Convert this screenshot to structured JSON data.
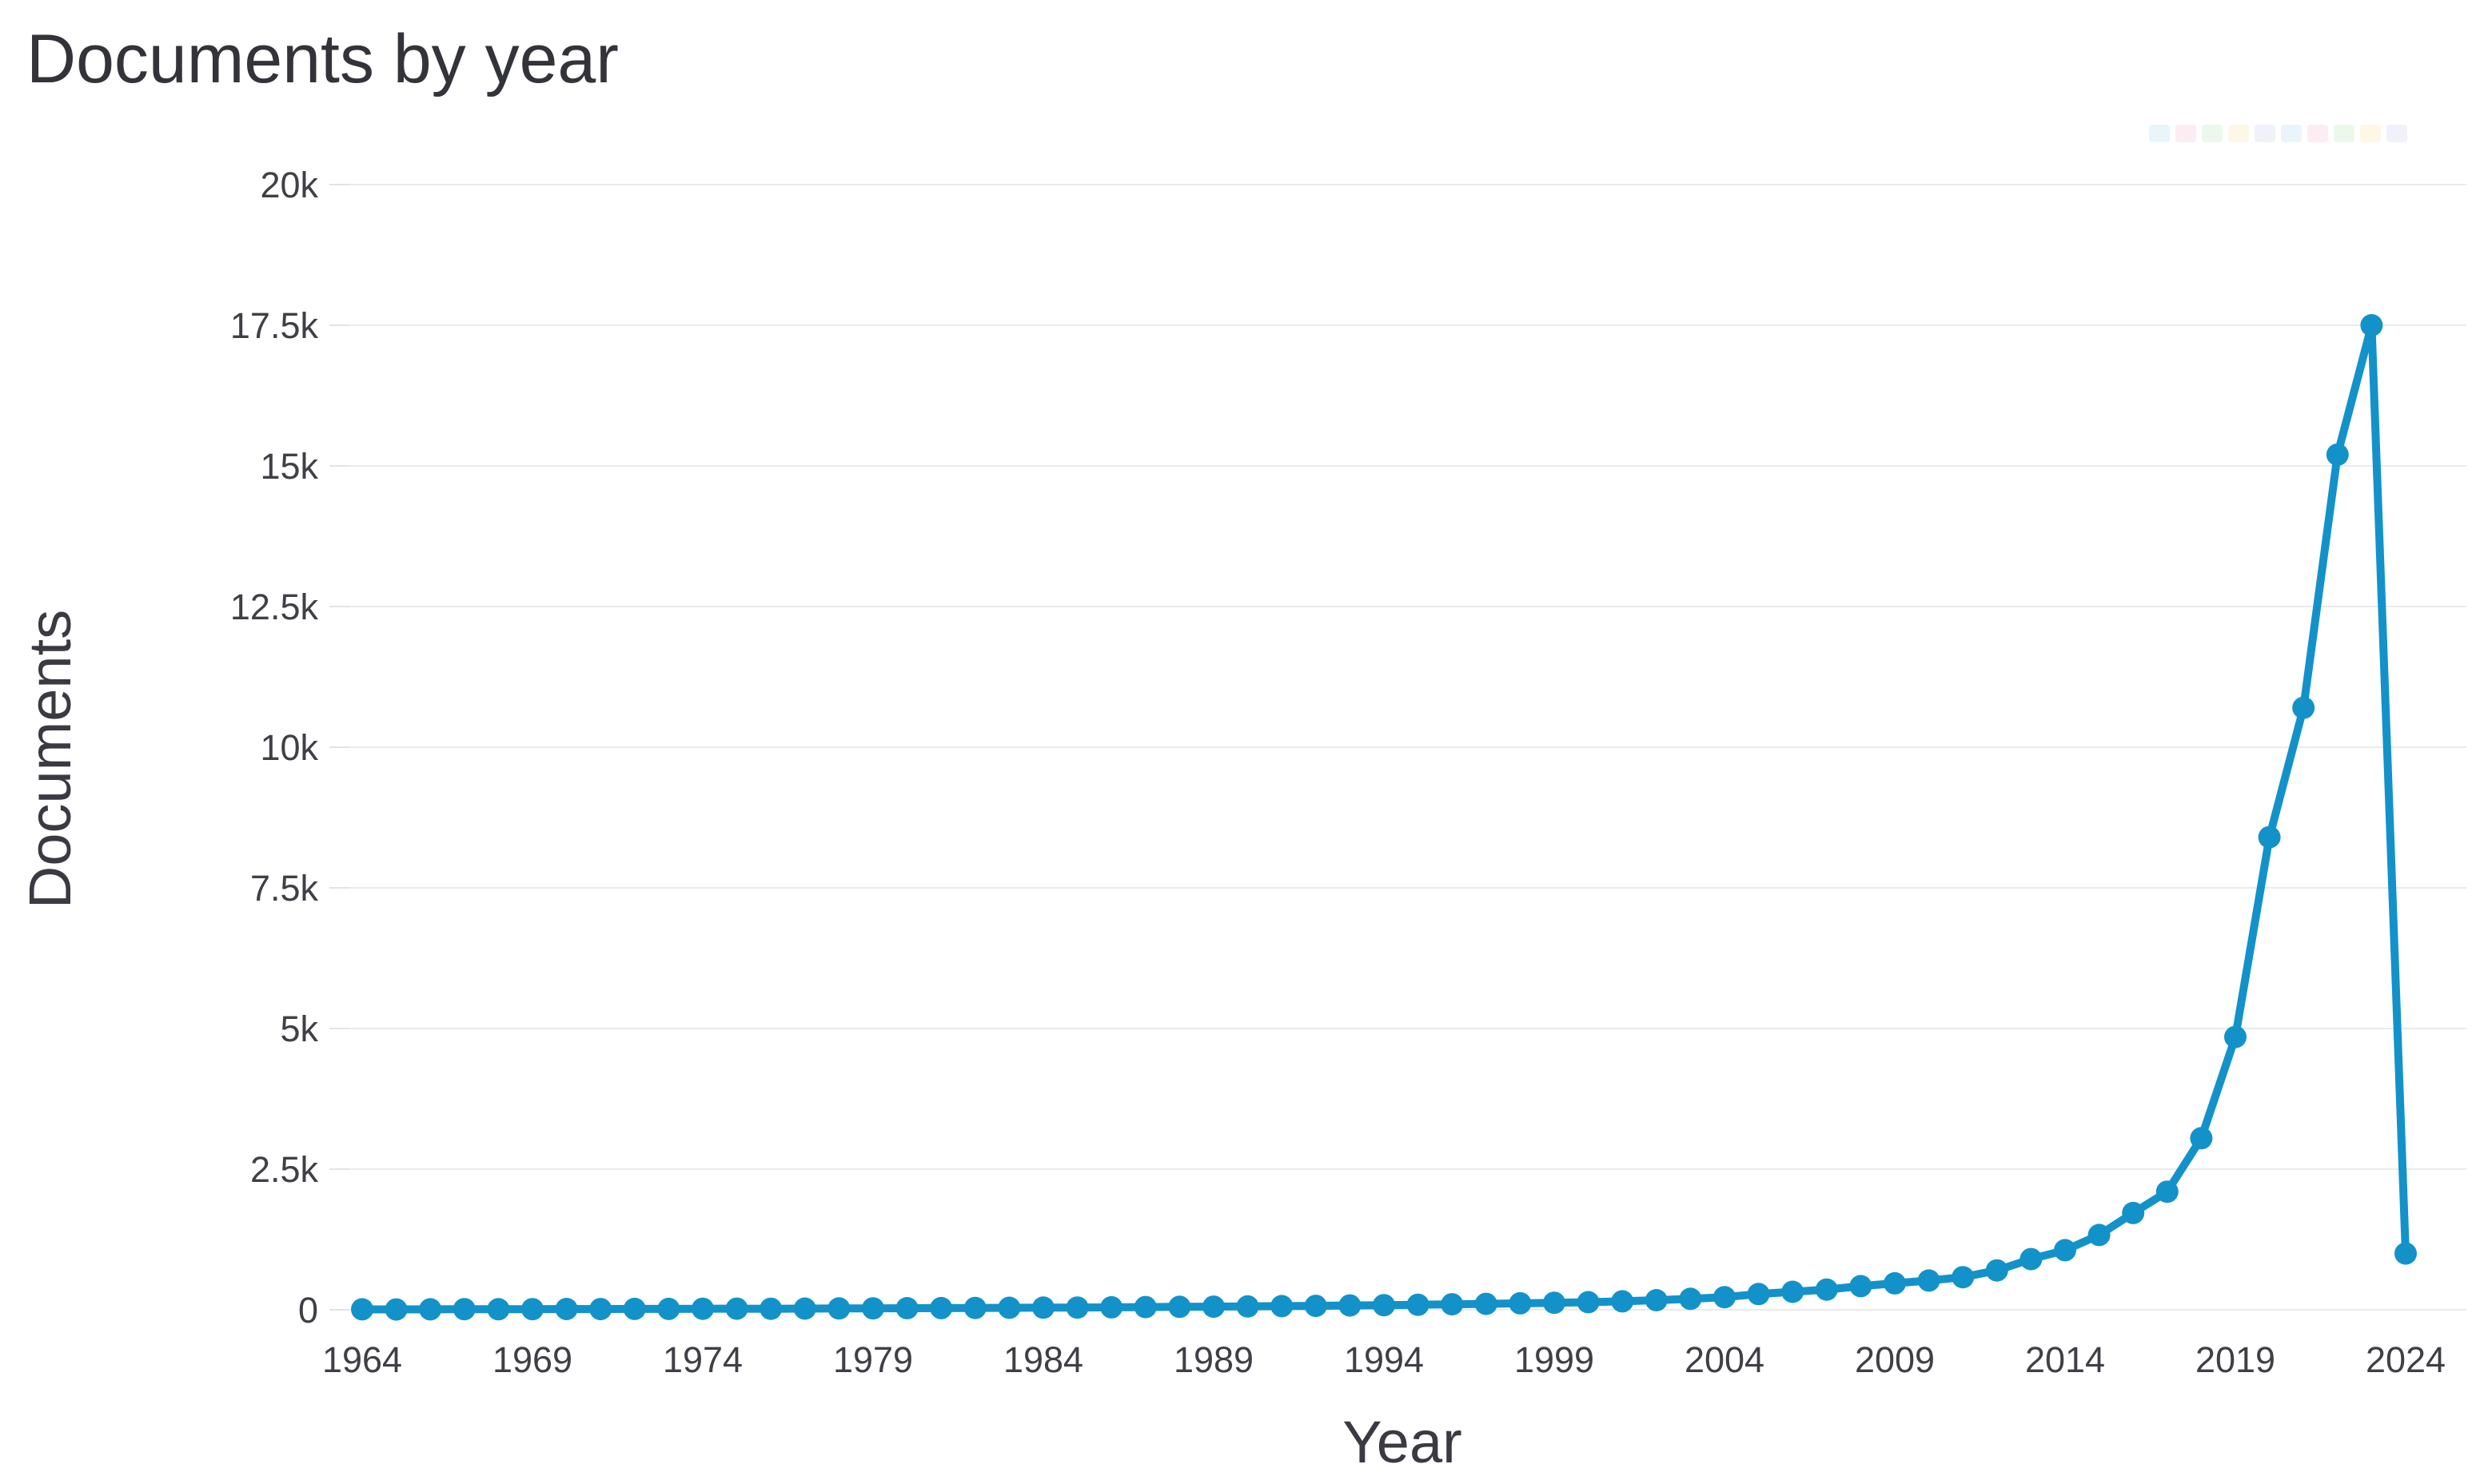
{
  "page": {
    "background": "#ffffff"
  },
  "chart_data": {
    "type": "line",
    "title": "Documents by year",
    "xlabel": "Year",
    "ylabel": "Documents",
    "legend": "none",
    "grid": "horizontal",
    "line_color": "#1392c9",
    "marker_color": "#1392c9",
    "grid_color": "#ebebeb",
    "xlim": [
      1963,
      2025
    ],
    "ylim": [
      0,
      20000
    ],
    "x_ticks": [
      1964,
      1969,
      1974,
      1979,
      1984,
      1989,
      1994,
      1999,
      2004,
      2009,
      2014,
      2019,
      2024
    ],
    "y_ticks": [
      {
        "value": 0,
        "label": "0"
      },
      {
        "value": 2500,
        "label": "2.5k"
      },
      {
        "value": 5000,
        "label": "5k"
      },
      {
        "value": 7500,
        "label": "7.5k"
      },
      {
        "value": 10000,
        "label": "10k"
      },
      {
        "value": 12500,
        "label": "12.5k"
      },
      {
        "value": 15000,
        "label": "15k"
      },
      {
        "value": 17500,
        "label": "17.5k"
      },
      {
        "value": 20000,
        "label": "20k"
      }
    ],
    "x": [
      1964,
      1965,
      1966,
      1967,
      1968,
      1969,
      1970,
      1971,
      1972,
      1973,
      1974,
      1975,
      1976,
      1977,
      1978,
      1979,
      1980,
      1981,
      1982,
      1983,
      1984,
      1985,
      1986,
      1987,
      1988,
      1989,
      1990,
      1991,
      1992,
      1993,
      1994,
      1995,
      1996,
      1997,
      1998,
      1999,
      2000,
      2001,
      2002,
      2003,
      2004,
      2005,
      2006,
      2007,
      2008,
      2009,
      2010,
      2011,
      2012,
      2013,
      2014,
      2015,
      2016,
      2017,
      2018,
      2019,
      2020,
      2021,
      2022,
      2023,
      2024
    ],
    "values": [
      8,
      6,
      9,
      11,
      10,
      12,
      14,
      13,
      16,
      15,
      18,
      20,
      19,
      22,
      24,
      26,
      28,
      30,
      33,
      35,
      38,
      40,
      44,
      48,
      52,
      56,
      60,
      65,
      70,
      76,
      82,
      90,
      98,
      105,
      115,
      125,
      135,
      150,
      170,
      195,
      225,
      280,
      320,
      360,
      420,
      470,
      520,
      580,
      700,
      900,
      1060,
      1330,
      1720,
      2100,
      3050,
      4850,
      8400,
      10700,
      15200,
      17500,
      1000
    ]
  },
  "modebar_watermark": {
    "colors": [
      "#cfe9f7",
      "#f9d8e6",
      "#d8f0d8",
      "#fdeec9",
      "#e2e2f7",
      "#cfe9f7",
      "#f9d8e6",
      "#d8f0d8",
      "#fdeec9",
      "#e2e2f7"
    ]
  }
}
